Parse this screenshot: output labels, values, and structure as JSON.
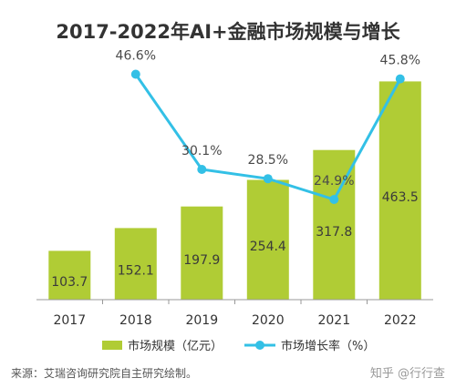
{
  "chart_data": {
    "type": "bar",
    "title": "2017-2022年AI+金融市场规模与增长",
    "categories": [
      "2017",
      "2018",
      "2019",
      "2020",
      "2021",
      "2022"
    ],
    "series": [
      {
        "name": "市场规模（亿元）",
        "type": "bar",
        "axis": "left",
        "values": [
          103.7,
          152.1,
          197.9,
          254.4,
          317.8,
          463.5
        ],
        "labels": [
          "103.7",
          "152.1",
          "197.9",
          "254.4",
          "317.8",
          "463.5"
        ],
        "color": "#b0cc35"
      },
      {
        "name": "市场增长率（%）",
        "type": "line",
        "axis": "right",
        "values": [
          null,
          46.6,
          30.1,
          28.5,
          24.9,
          45.8
        ],
        "labels": [
          "",
          "46.6%",
          "30.1%",
          "28.5%",
          "24.9%",
          "45.8%"
        ],
        "color": "#33c0e6"
      }
    ],
    "ylim": [
      0,
      470
    ],
    "y2lim": [
      0,
      100
    ],
    "grid": false,
    "legend": "bottom-center"
  },
  "footer": {
    "source": "来源：艾瑞咨询研究院自主研究绘制。",
    "watermark": "知乎 @行行查"
  }
}
